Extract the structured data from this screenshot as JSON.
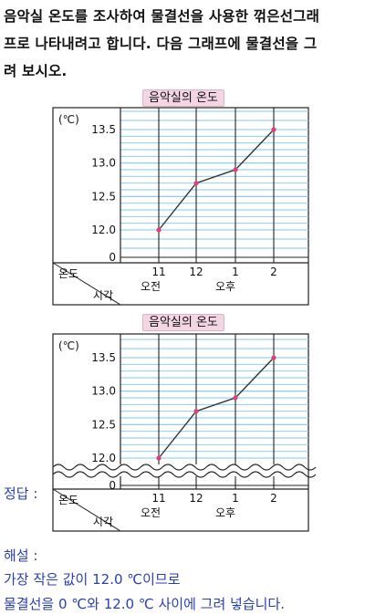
{
  "question": {
    "line1": "음악실 온도를 조사하여 물결선을 사용한 꺾은선그래",
    "line2": "프로 나타내려고 합니다. 다음 그래프에 물결선을 그",
    "line3": "려 보시오."
  },
  "chart_data": [
    {
      "type": "line",
      "title": "음악실의 온도",
      "unit": "(℃)",
      "x": [
        "11",
        "12",
        "1",
        "2"
      ],
      "period_labels": [
        "오전",
        "오후"
      ],
      "values": [
        12.0,
        12.7,
        12.9,
        13.5
      ],
      "y_ticks": [
        "13.5",
        "13.0",
        "12.5",
        "12.0",
        "0"
      ],
      "ylabel": "온도",
      "xlabel": "시각",
      "broken_axis": false,
      "line_color": "#333333",
      "point_color": "#e0407a",
      "grid_color": "#7ec8ee"
    },
    {
      "type": "line",
      "title": "음악실의 온도",
      "unit": "(℃)",
      "x": [
        "11",
        "12",
        "1",
        "2"
      ],
      "period_labels": [
        "오전",
        "오후"
      ],
      "values": [
        12.0,
        12.7,
        12.9,
        13.5
      ],
      "y_ticks": [
        "13.5",
        "13.0",
        "12.5",
        "12.0",
        "0"
      ],
      "ylabel": "온도",
      "xlabel": "시각",
      "broken_axis": true,
      "line_color": "#333333",
      "point_color": "#e0407a",
      "grid_color": "#7ec8ee"
    }
  ],
  "answer": {
    "label": "정답 :"
  },
  "solution": {
    "label": "해설 :",
    "line1": "가장 작은 값이 12.0 ℃이므로",
    "line2": "물결선을 0 ℃와 12.0 ℃ 사이에 그려 넣습니다."
  }
}
